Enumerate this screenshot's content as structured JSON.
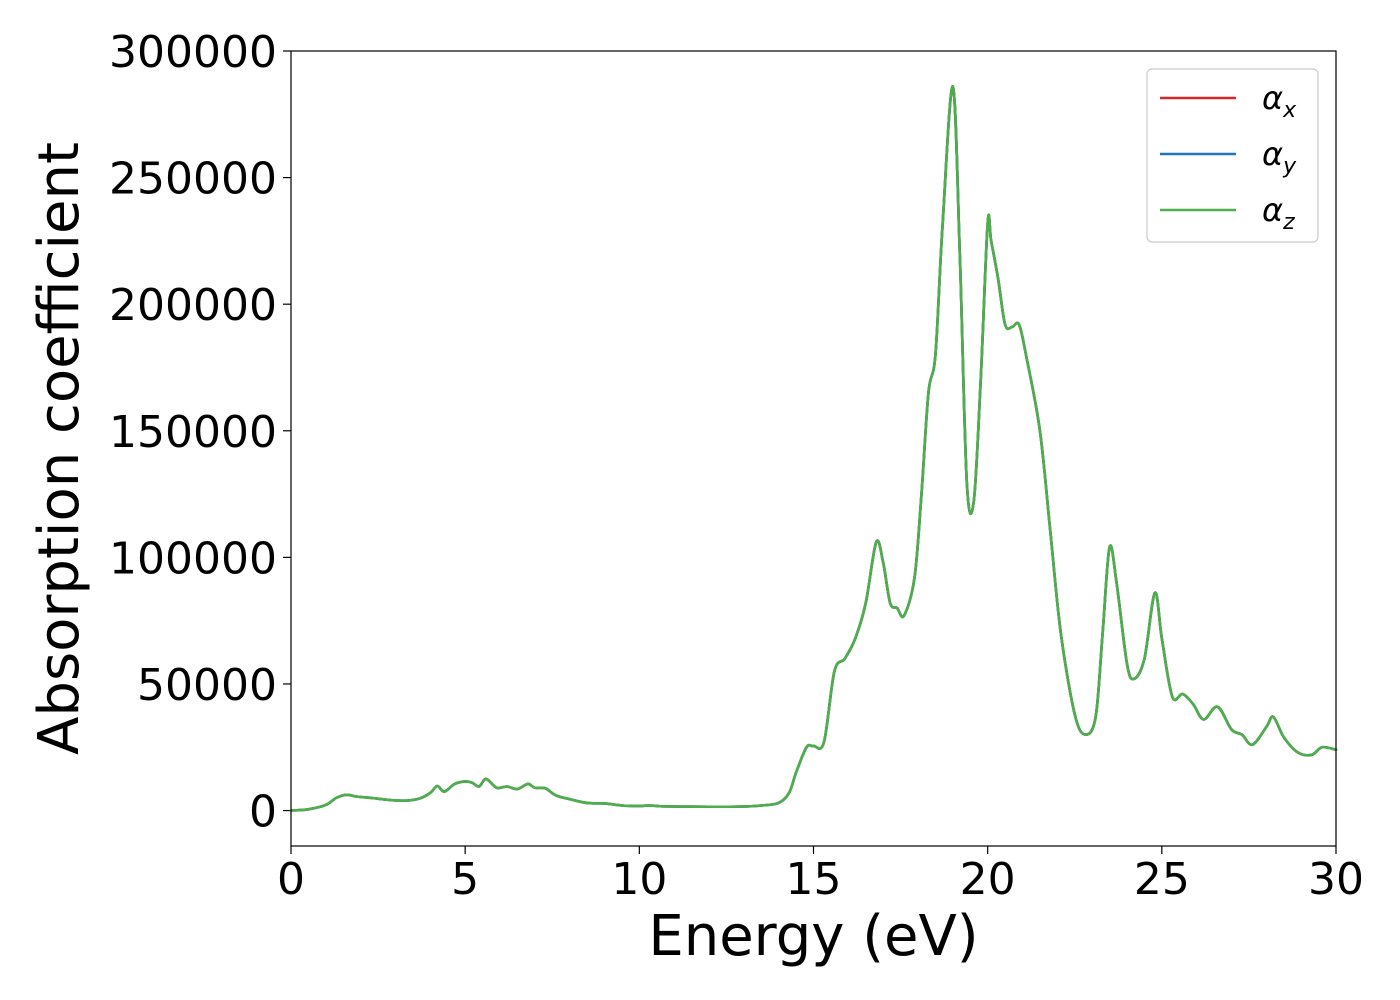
{
  "chart_data": {
    "type": "line",
    "title": "",
    "xlabel": "Energy (eV)",
    "ylabel": "Absorption coefficient",
    "xlim": [
      0,
      30
    ],
    "ylim": [
      -14000,
      300000
    ],
    "xticks": [
      0,
      5,
      10,
      15,
      20,
      25,
      30
    ],
    "yticks": [
      0,
      50000,
      100000,
      150000,
      200000,
      250000,
      300000
    ],
    "xtick_labels": [
      "0",
      "5",
      "10",
      "15",
      "20",
      "25",
      "30"
    ],
    "ytick_labels": [
      "0",
      "50000",
      "100000",
      "150000",
      "200000",
      "250000",
      "300000"
    ],
    "grid": false,
    "legend_position": "top-right",
    "x": [
      0,
      0.5,
      1.0,
      1.3,
      1.6,
      1.9,
      2.3,
      2.8,
      3.3,
      3.7,
      4.0,
      4.2,
      4.4,
      4.7,
      5.0,
      5.2,
      5.4,
      5.6,
      5.9,
      6.2,
      6.5,
      6.8,
      7.0,
      7.3,
      7.6,
      8.0,
      8.5,
      9.0,
      9.5,
      10.0,
      10.3,
      10.6,
      11.0,
      12.0,
      13.0,
      13.5,
      14.0,
      14.3,
      14.5,
      14.8,
      15.0,
      15.3,
      15.6,
      15.9,
      16.2,
      16.5,
      16.8,
      17.0,
      17.2,
      17.4,
      17.6,
      17.9,
      18.1,
      18.3,
      18.5,
      18.7,
      19.0,
      19.2,
      19.4,
      19.6,
      19.8,
      20.0,
      20.1,
      20.3,
      20.5,
      20.7,
      20.9,
      21.1,
      21.5,
      21.8,
      22.1,
      22.5,
      22.8,
      23.1,
      23.3,
      23.5,
      23.7,
      24.0,
      24.2,
      24.5,
      24.8,
      25.0,
      25.3,
      25.6,
      25.9,
      26.2,
      26.6,
      27.0,
      27.3,
      27.6,
      28.0,
      28.2,
      28.5,
      28.9,
      29.3,
      29.6,
      30.0
    ],
    "series": [
      {
        "name": "α_x",
        "color": "#d62728",
        "values": [
          0,
          500,
          2200,
          5000,
          6200,
          5500,
          5000,
          4200,
          3900,
          4800,
          7000,
          9700,
          7500,
          10500,
          11500,
          11000,
          9500,
          12500,
          9000,
          9500,
          8500,
          10500,
          9000,
          8800,
          6000,
          4500,
          3000,
          2800,
          2000,
          1800,
          2000,
          1700,
          1600,
          1500,
          1600,
          2000,
          3000,
          7000,
          15000,
          25000,
          25500,
          27000,
          55000,
          60000,
          68000,
          82000,
          106000,
          98000,
          82000,
          80000,
          77000,
          92000,
          125000,
          165000,
          180000,
          230000,
          286000,
          220000,
          130000,
          122000,
          170000,
          232000,
          225000,
          210000,
          192000,
          191000,
          192000,
          180000,
          150000,
          110000,
          70000,
          38000,
          30000,
          37000,
          70000,
          104000,
          90000,
          58000,
          52000,
          60000,
          86000,
          68000,
          45000,
          46000,
          42000,
          36000,
          41000,
          32000,
          30000,
          26000,
          33000,
          37000,
          29000,
          23000,
          22000,
          25000,
          24000
        ]
      },
      {
        "name": "α_y",
        "color": "#1f77b4",
        "values": [
          0,
          500,
          2200,
          5000,
          6200,
          5500,
          5000,
          4200,
          3900,
          4800,
          7000,
          9700,
          7500,
          10500,
          11500,
          11000,
          9500,
          12500,
          9000,
          9500,
          8500,
          10500,
          9000,
          8800,
          6000,
          4500,
          3000,
          2800,
          2000,
          1800,
          2000,
          1700,
          1600,
          1500,
          1600,
          2000,
          3000,
          7000,
          15000,
          25000,
          25500,
          27000,
          55000,
          60000,
          68000,
          82000,
          106000,
          98000,
          82000,
          80000,
          77000,
          92000,
          125000,
          165000,
          180000,
          230000,
          286000,
          220000,
          130000,
          122000,
          170000,
          232000,
          225000,
          210000,
          192000,
          191000,
          192000,
          180000,
          150000,
          110000,
          70000,
          38000,
          30000,
          37000,
          70000,
          104000,
          90000,
          58000,
          52000,
          60000,
          86000,
          68000,
          45000,
          46000,
          42000,
          36000,
          41000,
          32000,
          30000,
          26000,
          33000,
          37000,
          29000,
          23000,
          22000,
          25000,
          24000
        ]
      },
      {
        "name": "α_z",
        "color": "#4daf4a",
        "values": [
          0,
          500,
          2200,
          5000,
          6200,
          5500,
          5000,
          4200,
          3900,
          4800,
          7000,
          9700,
          7500,
          10500,
          11500,
          11000,
          9500,
          12500,
          9000,
          9500,
          8500,
          10500,
          9000,
          8800,
          6000,
          4500,
          3000,
          2800,
          2000,
          1800,
          2000,
          1700,
          1600,
          1500,
          1600,
          2000,
          3000,
          7000,
          15000,
          25000,
          25500,
          27000,
          55000,
          60000,
          68000,
          82000,
          106000,
          98000,
          82000,
          80000,
          77000,
          92000,
          125000,
          165000,
          180000,
          230000,
          286000,
          220000,
          130000,
          122000,
          170000,
          232000,
          225000,
          210000,
          192000,
          191000,
          192000,
          180000,
          150000,
          110000,
          70000,
          38000,
          30000,
          37000,
          70000,
          104000,
          90000,
          58000,
          52000,
          60000,
          86000,
          68000,
          45000,
          46000,
          42000,
          36000,
          41000,
          32000,
          30000,
          26000,
          33000,
          37000,
          29000,
          23000,
          22000,
          25000,
          24000
        ]
      }
    ],
    "legend": [
      {
        "symbol": "α",
        "subscript": "x"
      },
      {
        "symbol": "α",
        "subscript": "y"
      },
      {
        "symbol": "α",
        "subscript": "z"
      }
    ]
  }
}
